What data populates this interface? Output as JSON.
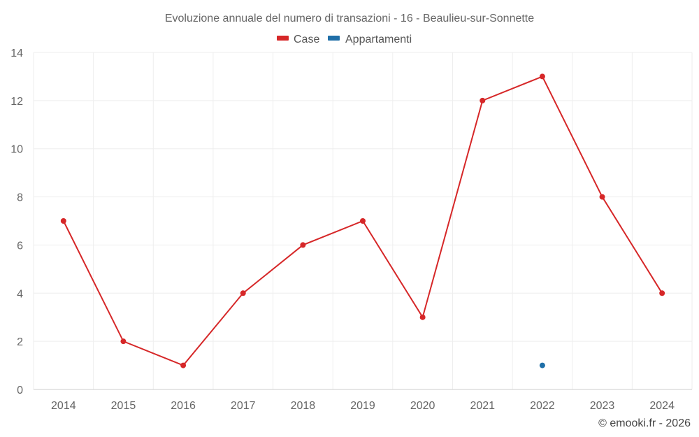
{
  "chart_data": {
    "type": "line",
    "title": "Evoluzione annuale del numero di transazioni - 16 - Beaulieu-sur-Sonnette",
    "categories": [
      "2014",
      "2015",
      "2016",
      "2017",
      "2018",
      "2019",
      "2020",
      "2021",
      "2022",
      "2023",
      "2024"
    ],
    "ylim": [
      0,
      14
    ],
    "yticks": [
      0,
      2,
      4,
      6,
      8,
      10,
      12,
      14
    ],
    "grid": true,
    "legend_position": "top-center",
    "series": [
      {
        "name": "Case",
        "color": "#d62728",
        "values": [
          7,
          2,
          1,
          4,
          6,
          7,
          3,
          12,
          13,
          8,
          4
        ]
      },
      {
        "name": "Appartamenti",
        "color": "#1f6fa8",
        "values": [
          null,
          null,
          null,
          null,
          null,
          null,
          null,
          null,
          1,
          null,
          null
        ]
      }
    ]
  },
  "credit": "© emooki.fr - 2026"
}
